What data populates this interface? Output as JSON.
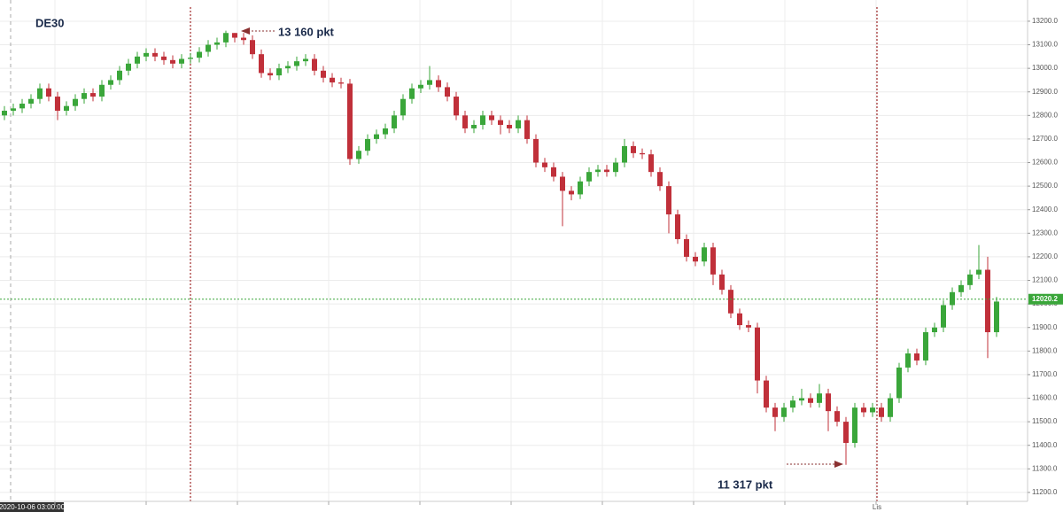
{
  "chart_data": {
    "type": "candlestick",
    "title": "DE30",
    "annotations": [
      "13 160 pkt",
      "11 317 pkt"
    ],
    "x_labels": [
      "2020-10-06 03:00:00",
      "Lis"
    ],
    "up_color": "#3aa63a",
    "down_color": "#c0303a",
    "last_price": 12020.2,
    "last_price_color": "#3aa63a",
    "grid": true,
    "ylim": [
      11162,
      13290
    ],
    "yticks": [
      {
        "value": 11200,
        "label": "11200.0"
      },
      {
        "value": 11300,
        "label": "11300.0"
      },
      {
        "value": 11400,
        "label": "11400.0"
      },
      {
        "value": 11500,
        "label": "11500.0"
      },
      {
        "value": 11600,
        "label": "11600.0"
      },
      {
        "value": 11700,
        "label": "11700.0"
      },
      {
        "value": 11800,
        "label": "11800.0"
      },
      {
        "value": 11900,
        "label": "11900.0"
      },
      {
        "value": 12000,
        "label": "12000.0"
      },
      {
        "value": 12100,
        "label": "12100.0"
      },
      {
        "value": 12200,
        "label": "12200.0"
      },
      {
        "value": 12300,
        "label": "12300.0"
      },
      {
        "value": 12400,
        "label": "12400.0"
      },
      {
        "value": 12500,
        "label": "12500.0"
      },
      {
        "value": 12600,
        "label": "12600.0"
      },
      {
        "value": 12700,
        "label": "12700.0"
      },
      {
        "value": 12800,
        "label": "12800.0"
      },
      {
        "value": 12900,
        "label": "12900.0"
      },
      {
        "value": 13000,
        "label": "13000.0"
      },
      {
        "value": 13100,
        "label": "13100.0"
      },
      {
        "value": 13200,
        "label": "13200.0"
      }
    ],
    "open": [
      12800,
      12820,
      12830,
      12850,
      12870,
      12915,
      12880,
      12820,
      12840,
      12870,
      12895,
      12880,
      12930,
      12950,
      12990,
      13020,
      13050,
      13065,
      13050,
      13035,
      13020,
      13040,
      13045,
      13070,
      13100,
      13110,
      13150,
      13130,
      13120,
      13060,
      12980,
      12970,
      13000,
      13010,
      13030,
      13040,
      12990,
      12960,
      12940,
      12935,
      12615,
      12650,
      12700,
      12720,
      12745,
      12800,
      12870,
      12915,
      12930,
      12950,
      12920,
      12880,
      12800,
      12745,
      12760,
      12800,
      12780,
      12760,
      12745,
      12780,
      12700,
      12600,
      12580,
      12540,
      12480,
      12465,
      12520,
      12560,
      12570,
      12560,
      12600,
      12670,
      12640,
      12635,
      12560,
      12500,
      12380,
      12275,
      12200,
      12180,
      12240,
      12125,
      12060,
      11960,
      11910,
      11900,
      11675,
      11560,
      11520,
      11560,
      11590,
      11600,
      11580,
      11620,
      11545,
      11500,
      11410,
      11560,
      11540,
      11560,
      11520,
      11600,
      11730,
      11790,
      11760,
      11880,
      11900,
      11995,
      12050,
      12080,
      12125,
      12145,
      11880
    ],
    "high": [
      12840,
      12850,
      12870,
      12890,
      12935,
      12935,
      12900,
      12860,
      12890,
      12915,
      12915,
      12950,
      12970,
      13010,
      13040,
      13070,
      13085,
      13085,
      13070,
      13055,
      13060,
      13065,
      13090,
      13120,
      13130,
      13160,
      13150,
      13150,
      13140,
      13080,
      13000,
      13020,
      13030,
      13050,
      13060,
      13060,
      13010,
      12980,
      12960,
      12955,
      12670,
      12720,
      12740,
      12765,
      12820,
      12890,
      12935,
      12950,
      13010,
      12970,
      12940,
      12900,
      12820,
      12780,
      12820,
      12820,
      12800,
      12780,
      12800,
      12800,
      12720,
      12620,
      12600,
      12560,
      12500,
      12540,
      12580,
      12590,
      12590,
      12620,
      12700,
      12690,
      12660,
      12655,
      12580,
      12520,
      12400,
      12295,
      12220,
      12260,
      12260,
      12145,
      12080,
      11980,
      11930,
      11920,
      11695,
      11580,
      11580,
      11610,
      11640,
      11620,
      11660,
      11640,
      11565,
      11520,
      11580,
      11580,
      11580,
      11580,
      11620,
      11750,
      11810,
      11810,
      11900,
      11920,
      12015,
      12070,
      12100,
      12145,
      12250,
      12200,
      12030
    ],
    "low": [
      12780,
      12800,
      12810,
      12830,
      12850,
      12860,
      12780,
      12800,
      12820,
      12850,
      12860,
      12860,
      12910,
      12930,
      12970,
      13000,
      13030,
      13030,
      13015,
      13000,
      13000,
      13020,
      13025,
      13050,
      13080,
      13090,
      13110,
      13100,
      13040,
      12960,
      12950,
      12950,
      12980,
      12990,
      13010,
      12970,
      12940,
      12920,
      12915,
      12590,
      12595,
      12630,
      12680,
      12700,
      12725,
      12780,
      12850,
      12895,
      12910,
      12900,
      12860,
      12780,
      12725,
      12725,
      12740,
      12760,
      12720,
      12725,
      12725,
      12680,
      12580,
      12560,
      12520,
      12330,
      12440,
      12445,
      12500,
      12540,
      12540,
      12540,
      12580,
      12620,
      12615,
      12540,
      12480,
      12300,
      12255,
      12180,
      12160,
      12160,
      12080,
      12040,
      11940,
      11890,
      11880,
      11620,
      11540,
      11460,
      11500,
      11540,
      11570,
      11560,
      11560,
      11460,
      11480,
      11317,
      11390,
      11520,
      11520,
      11500,
      11500,
      11580,
      11710,
      11740,
      11740,
      11860,
      11880,
      11975,
      12030,
      12060,
      12105,
      11770,
      11860
    ],
    "close": [
      12820,
      12830,
      12850,
      12870,
      12915,
      12880,
      12820,
      12840,
      12870,
      12895,
      12880,
      12930,
      12950,
      12990,
      13020,
      13050,
      13065,
      13050,
      13035,
      13020,
      13040,
      13045,
      13070,
      13100,
      13110,
      13150,
      13130,
      13120,
      13060,
      12980,
      12970,
      13000,
      13010,
      13030,
      13040,
      12990,
      12960,
      12940,
      12935,
      12615,
      12650,
      12700,
      12720,
      12745,
      12800,
      12870,
      12915,
      12930,
      12950,
      12920,
      12880,
      12800,
      12745,
      12760,
      12800,
      12780,
      12760,
      12745,
      12780,
      12700,
      12600,
      12580,
      12540,
      12480,
      12465,
      12520,
      12560,
      12570,
      12560,
      12600,
      12670,
      12640,
      12635,
      12560,
      12500,
      12380,
      12275,
      12200,
      12180,
      12240,
      12125,
      12060,
      11960,
      11910,
      11900,
      11675,
      11560,
      11520,
      11560,
      11590,
      11600,
      11580,
      11620,
      11545,
      11500,
      11410,
      11560,
      11540,
      11560,
      11520,
      11600,
      11730,
      11790,
      11760,
      11880,
      11900,
      11995,
      12050,
      12080,
      12125,
      12145,
      11880,
      12010
    ]
  }
}
